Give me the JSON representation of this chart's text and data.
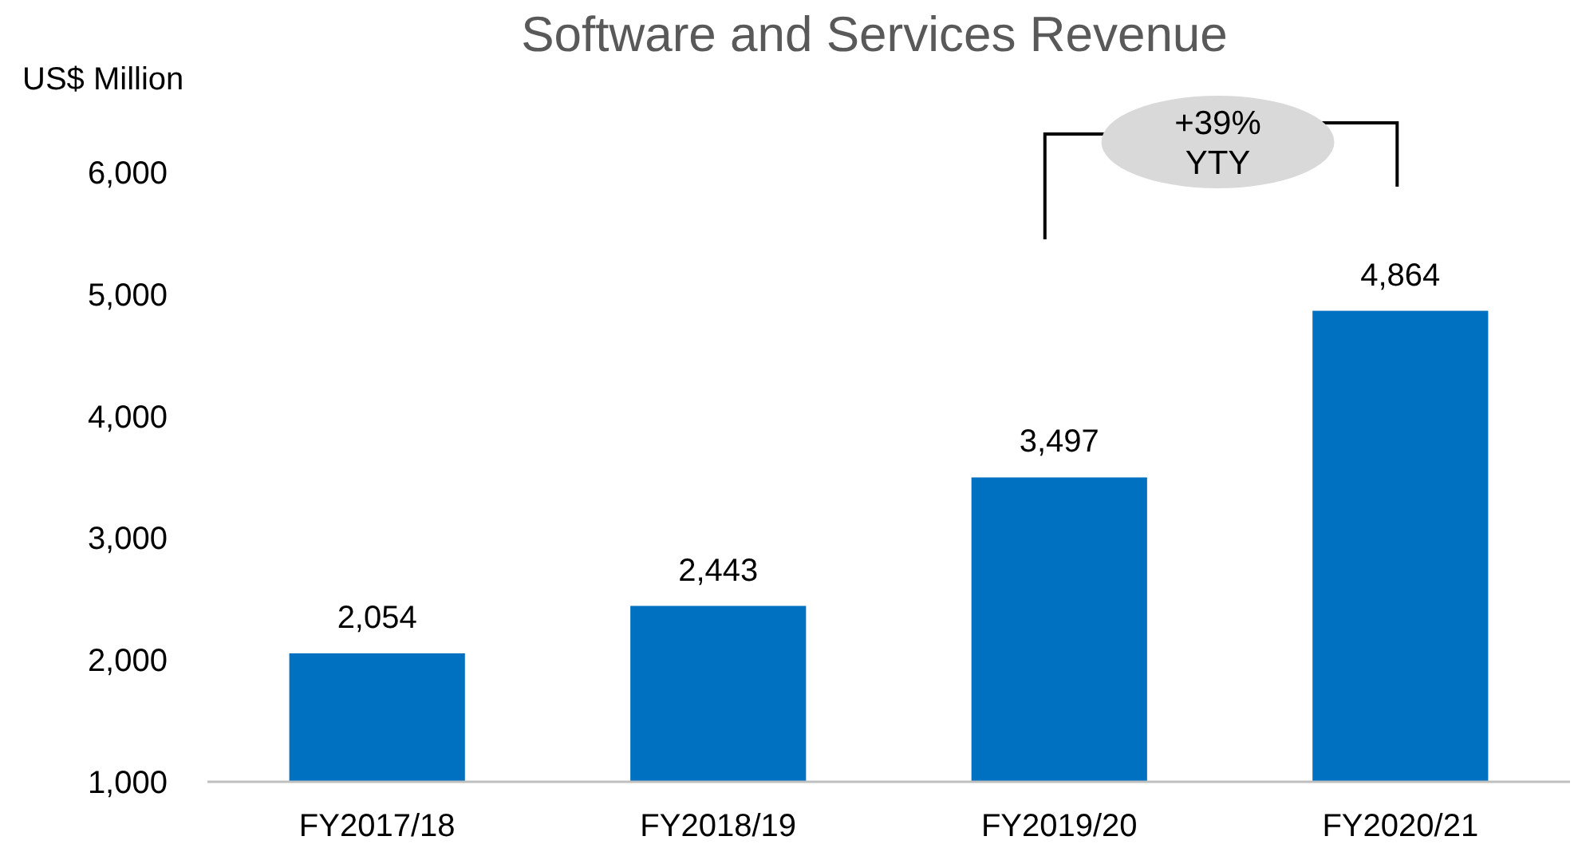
{
  "chart_data": {
    "type": "bar",
    "title": "Software and Services Revenue",
    "ylabel": "US$ Million",
    "categories": [
      "FY2017/18",
      "FY2018/19",
      "FY2019/20",
      "FY2020/21"
    ],
    "values": [
      2054,
      2443,
      3497,
      4864
    ],
    "color": "#0070c0",
    "ylim": [
      1000,
      6000
    ],
    "yticks": [
      {
        "value": 1000,
        "label": "1,000"
      },
      {
        "value": 2000,
        "label": "2,000"
      },
      {
        "value": 3000,
        "label": "3,000"
      },
      {
        "value": 4000,
        "label": "4,000"
      },
      {
        "value": 5000,
        "label": "5,000"
      },
      {
        "value": 6000,
        "label": "6,000"
      }
    ],
    "value_labels": [
      "2,054",
      "2,443",
      "3,497",
      "4,864"
    ],
    "annotations": [
      "+39% YTY"
    ],
    "grid": false
  }
}
